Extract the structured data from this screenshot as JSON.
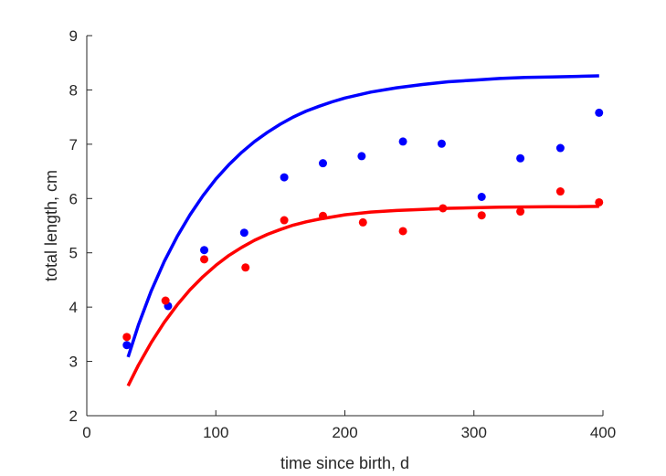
{
  "chart_data": {
    "type": "scatter",
    "title": "",
    "xlabel": "time since birth, d",
    "ylabel": "total length, cm",
    "xlim": [
      0,
      400
    ],
    "ylim": [
      2,
      9
    ],
    "xticks": [
      0,
      100,
      200,
      300,
      400
    ],
    "yticks": [
      2,
      3,
      4,
      5,
      6,
      7,
      8,
      9
    ],
    "grid": false,
    "legend": "none",
    "series": [
      {
        "kind": "points",
        "color": "#0000ff",
        "x": [
          31,
          63,
          91,
          122,
          153,
          183,
          213,
          245,
          275,
          306,
          336,
          367,
          397
        ],
        "y": [
          3.3,
          4.02,
          5.05,
          5.37,
          6.39,
          6.65,
          6.78,
          7.05,
          7.01,
          6.03,
          6.74,
          6.93,
          7.58
        ]
      },
      {
        "kind": "points",
        "color": "#ff0000",
        "x": [
          31,
          61,
          91,
          123,
          153,
          183,
          214,
          245,
          276,
          306,
          336,
          367,
          397
        ],
        "y": [
          3.45,
          4.12,
          4.88,
          4.73,
          5.6,
          5.68,
          5.56,
          5.4,
          5.82,
          5.69,
          5.76,
          6.13,
          5.93
        ]
      },
      {
        "kind": "line",
        "color": "#0000ff",
        "x": [
          32,
          40,
          50,
          60,
          70,
          80,
          90,
          100,
          110,
          120,
          130,
          140,
          150,
          160,
          170,
          180,
          190,
          200,
          220,
          240,
          260,
          280,
          300,
          320,
          340,
          360,
          380,
          397
        ],
        "y": [
          3.08,
          3.67,
          4.3,
          4.84,
          5.3,
          5.7,
          6.05,
          6.36,
          6.62,
          6.85,
          7.05,
          7.22,
          7.37,
          7.5,
          7.61,
          7.7,
          7.78,
          7.85,
          7.96,
          8.04,
          8.1,
          8.15,
          8.18,
          8.21,
          8.23,
          8.24,
          8.25,
          8.26
        ]
      },
      {
        "kind": "line",
        "color": "#ff0000",
        "x": [
          32,
          40,
          50,
          60,
          70,
          80,
          90,
          100,
          110,
          120,
          130,
          140,
          150,
          160,
          170,
          180,
          190,
          200,
          220,
          240,
          260,
          280,
          300,
          320,
          340,
          360,
          380,
          397
        ],
        "y": [
          2.55,
          2.93,
          3.35,
          3.72,
          4.04,
          4.32,
          4.56,
          4.77,
          4.95,
          5.1,
          5.23,
          5.34,
          5.43,
          5.51,
          5.57,
          5.62,
          5.66,
          5.7,
          5.75,
          5.78,
          5.8,
          5.82,
          5.83,
          5.84,
          5.845,
          5.85,
          5.85,
          5.855
        ]
      }
    ]
  }
}
